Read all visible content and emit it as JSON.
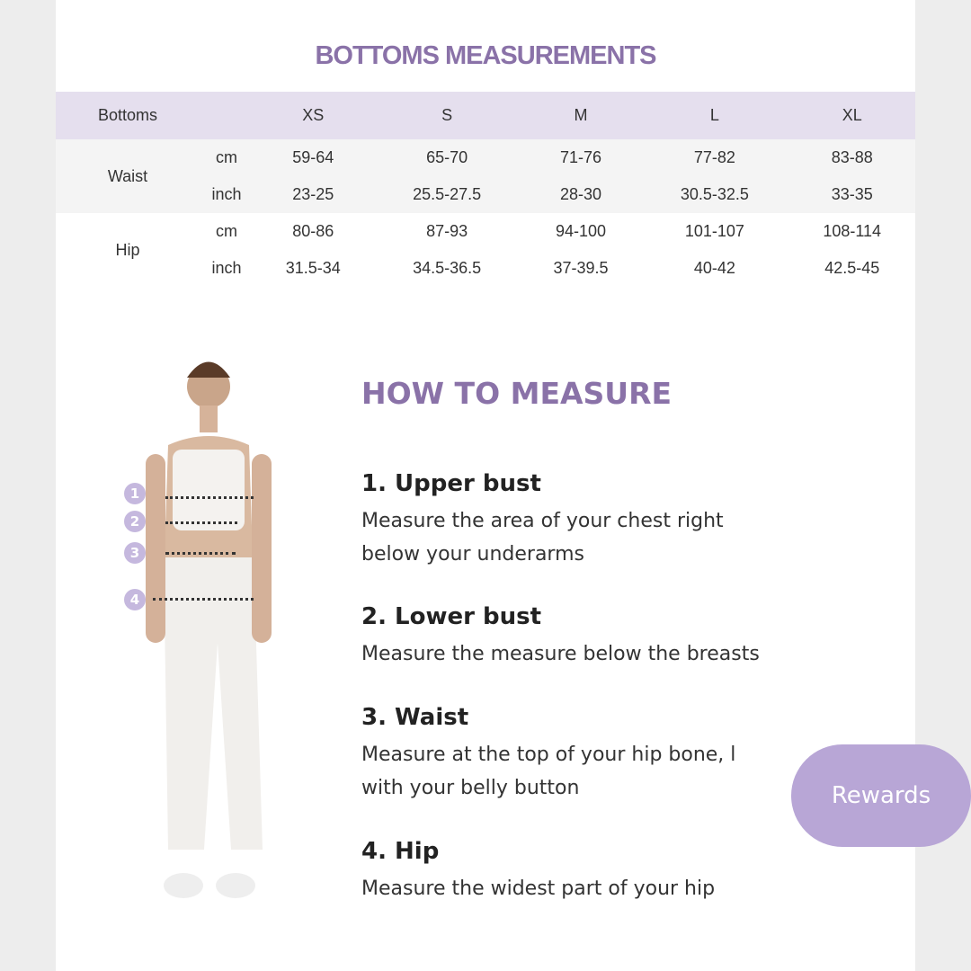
{
  "title": "BOTTOMS MEASUREMENTS",
  "table": {
    "headers": [
      "Bottoms",
      "",
      "XS",
      "S",
      "M",
      "L",
      "XL"
    ],
    "rows": [
      {
        "group": "Waist",
        "unit": "cm",
        "values": [
          "59-64",
          "65-70",
          "71-76",
          "77-82",
          "83-88"
        ]
      },
      {
        "group": "",
        "unit": "inch",
        "values": [
          "23-25",
          "25.5-27.5",
          "28-30",
          "30.5-32.5",
          "33-35"
        ]
      },
      {
        "group": "Hip",
        "unit": "cm",
        "values": [
          "80-86",
          "87-93",
          "94-100",
          "101-107",
          "108-114"
        ]
      },
      {
        "group": "",
        "unit": "inch",
        "values": [
          "31.5-34",
          "34.5-36.5",
          "37-39.5",
          "40-42",
          "42.5-45"
        ]
      }
    ]
  },
  "how_to": {
    "title": "HOW TO MEASURE",
    "steps": [
      {
        "title": "1. Upper bust",
        "lines": [
          "Measure the area of your chest right",
          "below your underarms"
        ]
      },
      {
        "title": "2. Lower bust",
        "lines": [
          "Measure the measure below the breasts"
        ]
      },
      {
        "title": "3. Waist",
        "lines": [
          "Measure at the top of your hip bone, l",
          "with your belly button"
        ]
      },
      {
        "title": "4. Hip",
        "lines": [
          "Measure the widest part of your hip"
        ]
      }
    ]
  },
  "figure": {
    "markers": [
      "1",
      "2",
      "3",
      "4"
    ]
  },
  "rewards_label": "Rewards",
  "colors": {
    "accent": "#8a72a8",
    "header_band": "#e5dfee",
    "rewards": "#b8a6d6"
  }
}
